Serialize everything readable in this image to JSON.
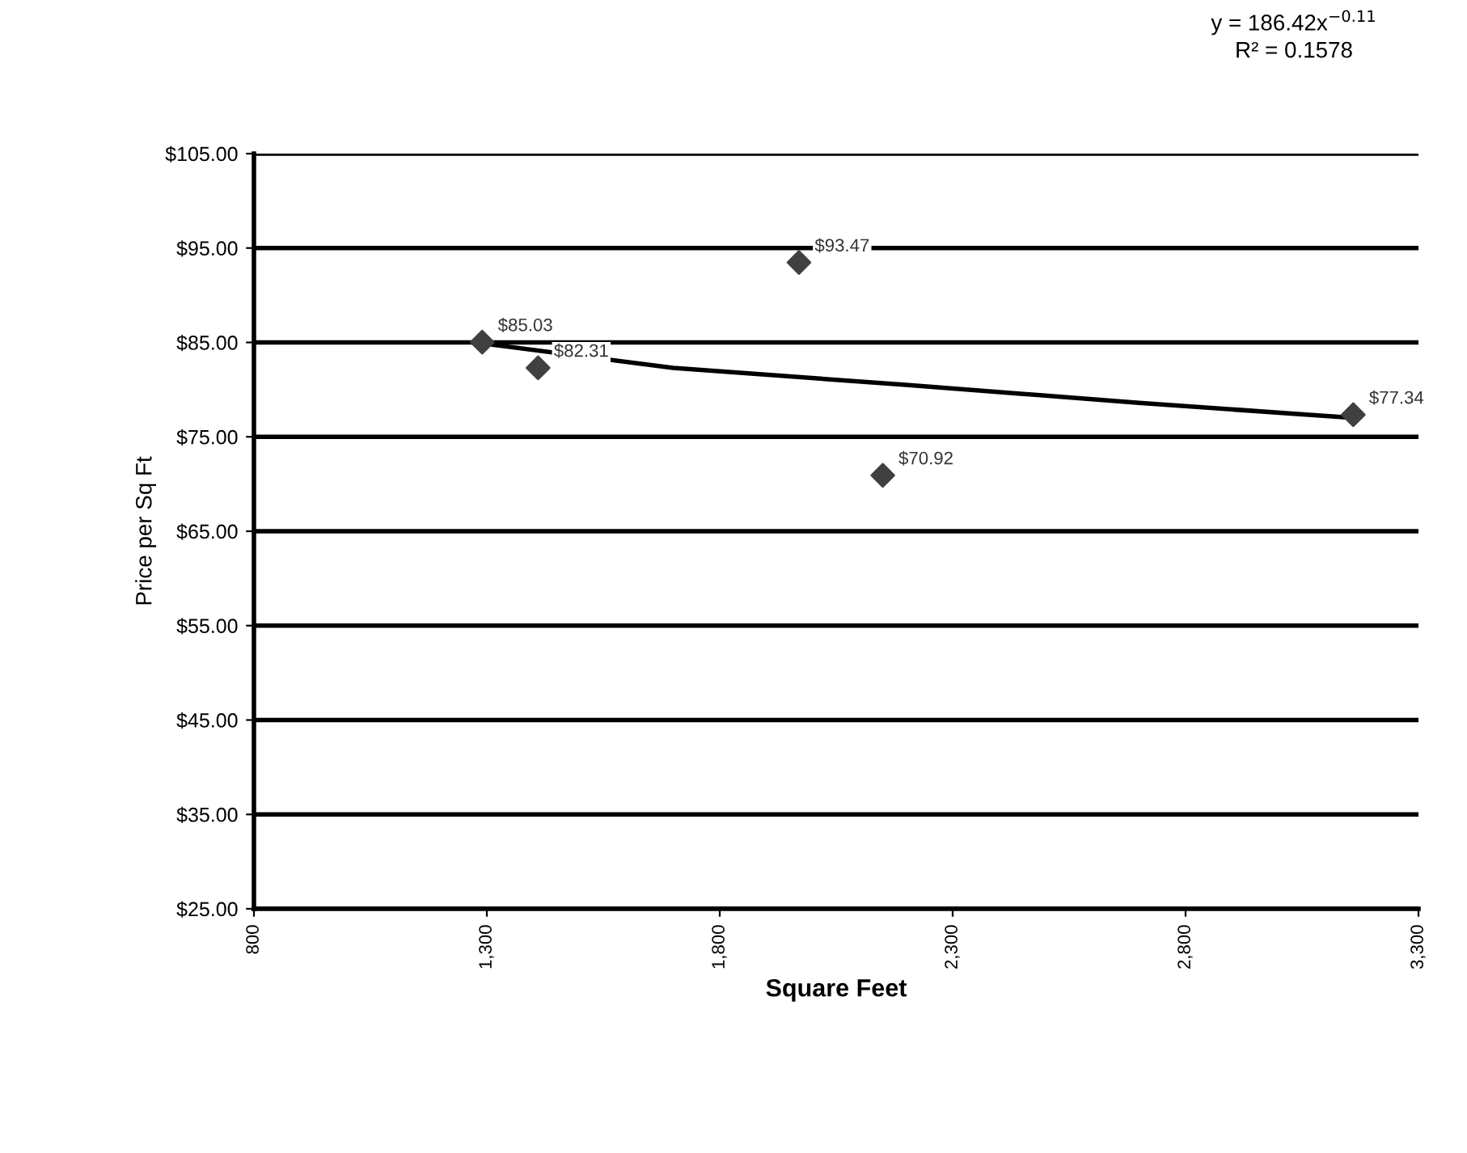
{
  "chart_data": {
    "type": "scatter",
    "xlabel": "Square Feet",
    "ylabel": "Price per Sq Ft",
    "annotations": [
      "y = 186.42x$^{−0.11}$",
      "R² = 0.1578"
    ],
    "series": [
      {
        "color": "#404040",
        "x": [
          1290,
          1410,
          1970,
          2150,
          3160
        ],
        "values": [
          85.03,
          82.31,
          93.47,
          70.92,
          77.34
        ],
        "value_labels": [
          "$85.03",
          "$82.31",
          "$93.47",
          "$70.92",
          "$77.34"
        ],
        "marker": "diamond"
      },
      {
        "type": "line",
        "color": "#000000",
        "x": [
          1290,
          1700,
          2200,
          2700,
          3160
        ],
        "values": [
          84.9,
          82.3,
          80.5,
          78.6,
          77.0
        ],
        "line_style": "solid"
      }
    ],
    "xlim": [
      800,
      3300
    ],
    "xticks": [
      {
        "value": 800,
        "label": "800"
      },
      {
        "value": 1300,
        "label": "1,300"
      },
      {
        "value": 1800,
        "label": "1,800"
      },
      {
        "value": 2300,
        "label": "2,300"
      },
      {
        "value": 2800,
        "label": "2,800"
      },
      {
        "value": 3300,
        "label": "3,300"
      }
    ],
    "ylim": [
      25,
      105
    ],
    "yticks": [
      {
        "value": 25,
        "label": "$25.00"
      },
      {
        "value": 35,
        "label": "$35.00"
      },
      {
        "value": 45,
        "label": "$45.00"
      },
      {
        "value": 55,
        "label": "$55.00"
      },
      {
        "value": 65,
        "label": "$65.00"
      },
      {
        "value": 75,
        "label": "$75.00"
      },
      {
        "value": 85,
        "label": "$85.00"
      },
      {
        "value": 95,
        "label": "$95.00"
      },
      {
        "value": 105,
        "label": "$105.00"
      }
    ],
    "grid": "y",
    "legend": false
  }
}
